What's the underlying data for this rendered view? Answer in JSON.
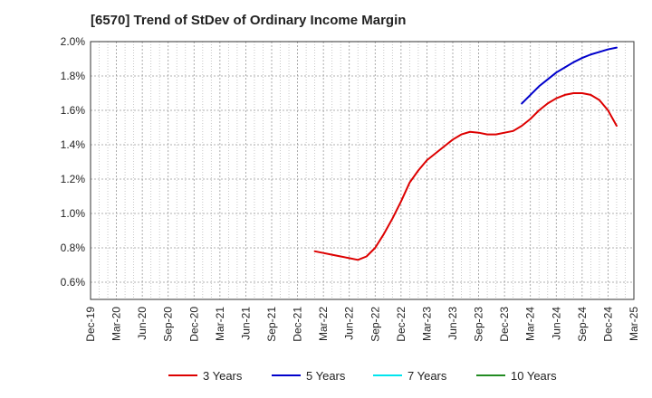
{
  "chart_data": {
    "type": "line",
    "title": "[6570]  Trend of StDev of Ordinary Income Margin",
    "xlabel": "",
    "ylabel": "",
    "x_ticks": [
      "Dec-19",
      "Mar-20",
      "Jun-20",
      "Sep-20",
      "Dec-20",
      "Mar-21",
      "Jun-21",
      "Sep-21",
      "Dec-21",
      "Mar-22",
      "Jun-22",
      "Sep-22",
      "Dec-22",
      "Mar-23",
      "Jun-23",
      "Sep-23",
      "Dec-23",
      "Mar-24",
      "Jun-24",
      "Sep-24",
      "Dec-24",
      "Mar-25"
    ],
    "y_ticks": [
      "0.6%",
      "0.8%",
      "1.0%",
      "1.2%",
      "1.4%",
      "1.6%",
      "1.8%",
      "2.0%"
    ],
    "ylim": [
      0.5,
      2.0
    ],
    "grid": true,
    "legend_position": "bottom",
    "series": [
      {
        "name": "3 Years",
        "color": "#dd0000",
        "points": [
          [
            "Feb-22",
            0.78
          ],
          [
            "Mar-22",
            0.77
          ],
          [
            "Apr-22",
            0.76
          ],
          [
            "May-22",
            0.75
          ],
          [
            "Jun-22",
            0.74
          ],
          [
            "Jul-22",
            0.73
          ],
          [
            "Aug-22",
            0.75
          ],
          [
            "Sep-22",
            0.8
          ],
          [
            "Oct-22",
            0.88
          ],
          [
            "Nov-22",
            0.97
          ],
          [
            "Dec-22",
            1.07
          ],
          [
            "Jan-23",
            1.18
          ],
          [
            "Feb-23",
            1.25
          ],
          [
            "Mar-23",
            1.31
          ],
          [
            "Apr-23",
            1.35
          ],
          [
            "May-23",
            1.39
          ],
          [
            "Jun-23",
            1.43
          ],
          [
            "Jul-23",
            1.46
          ],
          [
            "Aug-23",
            1.475
          ],
          [
            "Sep-23",
            1.47
          ],
          [
            "Oct-23",
            1.46
          ],
          [
            "Nov-23",
            1.46
          ],
          [
            "Dec-23",
            1.47
          ],
          [
            "Jan-24",
            1.48
          ],
          [
            "Feb-24",
            1.51
          ],
          [
            "Mar-24",
            1.55
          ],
          [
            "Apr-24",
            1.6
          ],
          [
            "May-24",
            1.64
          ],
          [
            "Jun-24",
            1.67
          ],
          [
            "Jul-24",
            1.69
          ],
          [
            "Aug-24",
            1.7
          ],
          [
            "Sep-24",
            1.7
          ],
          [
            "Oct-24",
            1.69
          ],
          [
            "Nov-24",
            1.66
          ],
          [
            "Dec-24",
            1.6
          ],
          [
            "Jan-25",
            1.51
          ]
        ]
      },
      {
        "name": "5 Years",
        "color": "#0000cc",
        "points": [
          [
            "Feb-24",
            1.64
          ],
          [
            "Mar-24",
            1.69
          ],
          [
            "Apr-24",
            1.74
          ],
          [
            "May-24",
            1.78
          ],
          [
            "Jun-24",
            1.82
          ],
          [
            "Jul-24",
            1.85
          ],
          [
            "Aug-24",
            1.88
          ],
          [
            "Sep-24",
            1.905
          ],
          [
            "Oct-24",
            1.925
          ],
          [
            "Nov-24",
            1.94
          ],
          [
            "Dec-24",
            1.955
          ],
          [
            "Jan-25",
            1.965
          ]
        ]
      },
      {
        "name": "7 Years",
        "color": "#00e5ee",
        "points": []
      },
      {
        "name": "10 Years",
        "color": "#228b22",
        "points": []
      }
    ]
  }
}
